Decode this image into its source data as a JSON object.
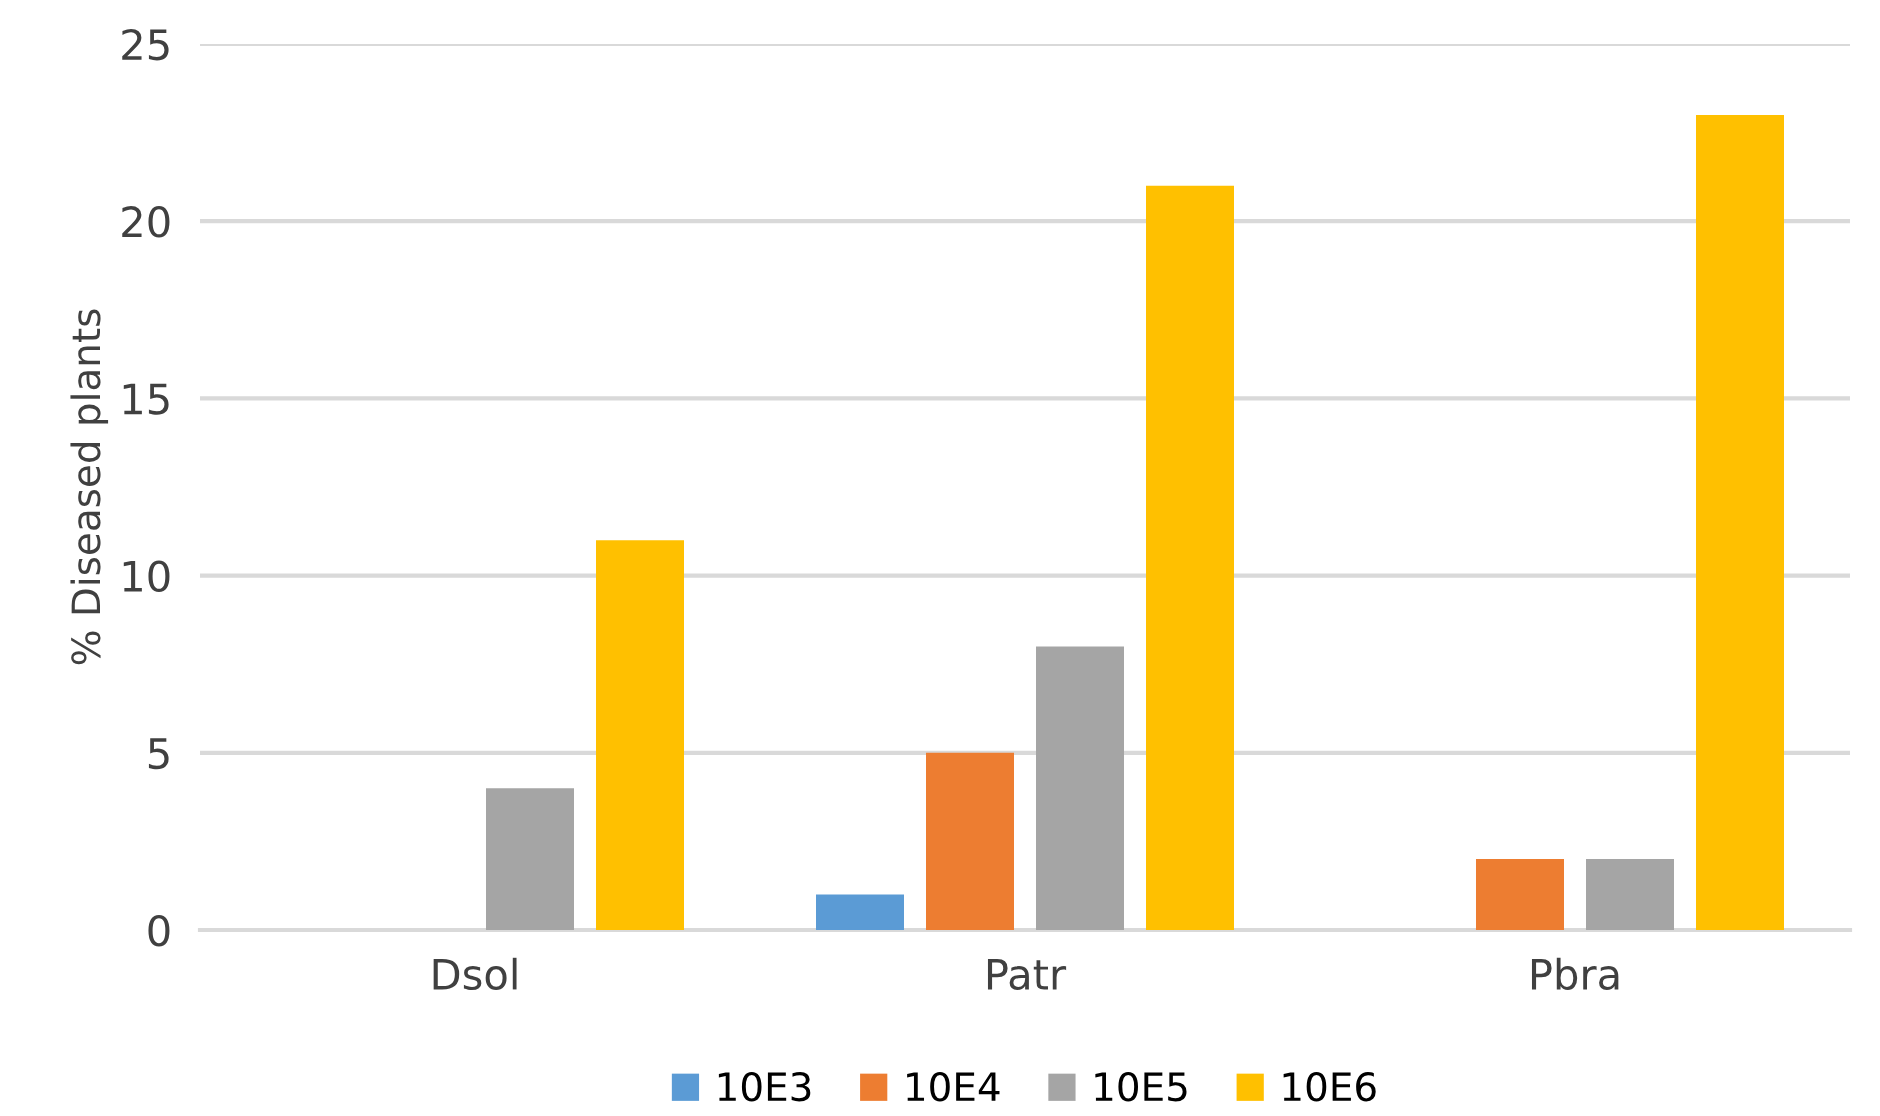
{
  "chart_data": {
    "type": "bar",
    "ylabel": "% Diseased plants",
    "categories": [
      "Dsol",
      "Patr",
      "Pbra"
    ],
    "series": [
      {
        "name": "10E3",
        "color": "#5b9bd5",
        "values": [
          0,
          1,
          0
        ]
      },
      {
        "name": "10E4",
        "color": "#ed7d31",
        "values": [
          0,
          5,
          2
        ]
      },
      {
        "name": "10E5",
        "color": "#a5a5a5",
        "values": [
          4,
          8,
          2
        ]
      },
      {
        "name": "10E6",
        "color": "#ffc000",
        "values": [
          11,
          21,
          23
        ]
      }
    ],
    "ylim": [
      0,
      25
    ],
    "yticks": [
      0,
      5,
      10,
      15,
      20,
      25
    ],
    "grid": "y",
    "legend": "bottom"
  }
}
